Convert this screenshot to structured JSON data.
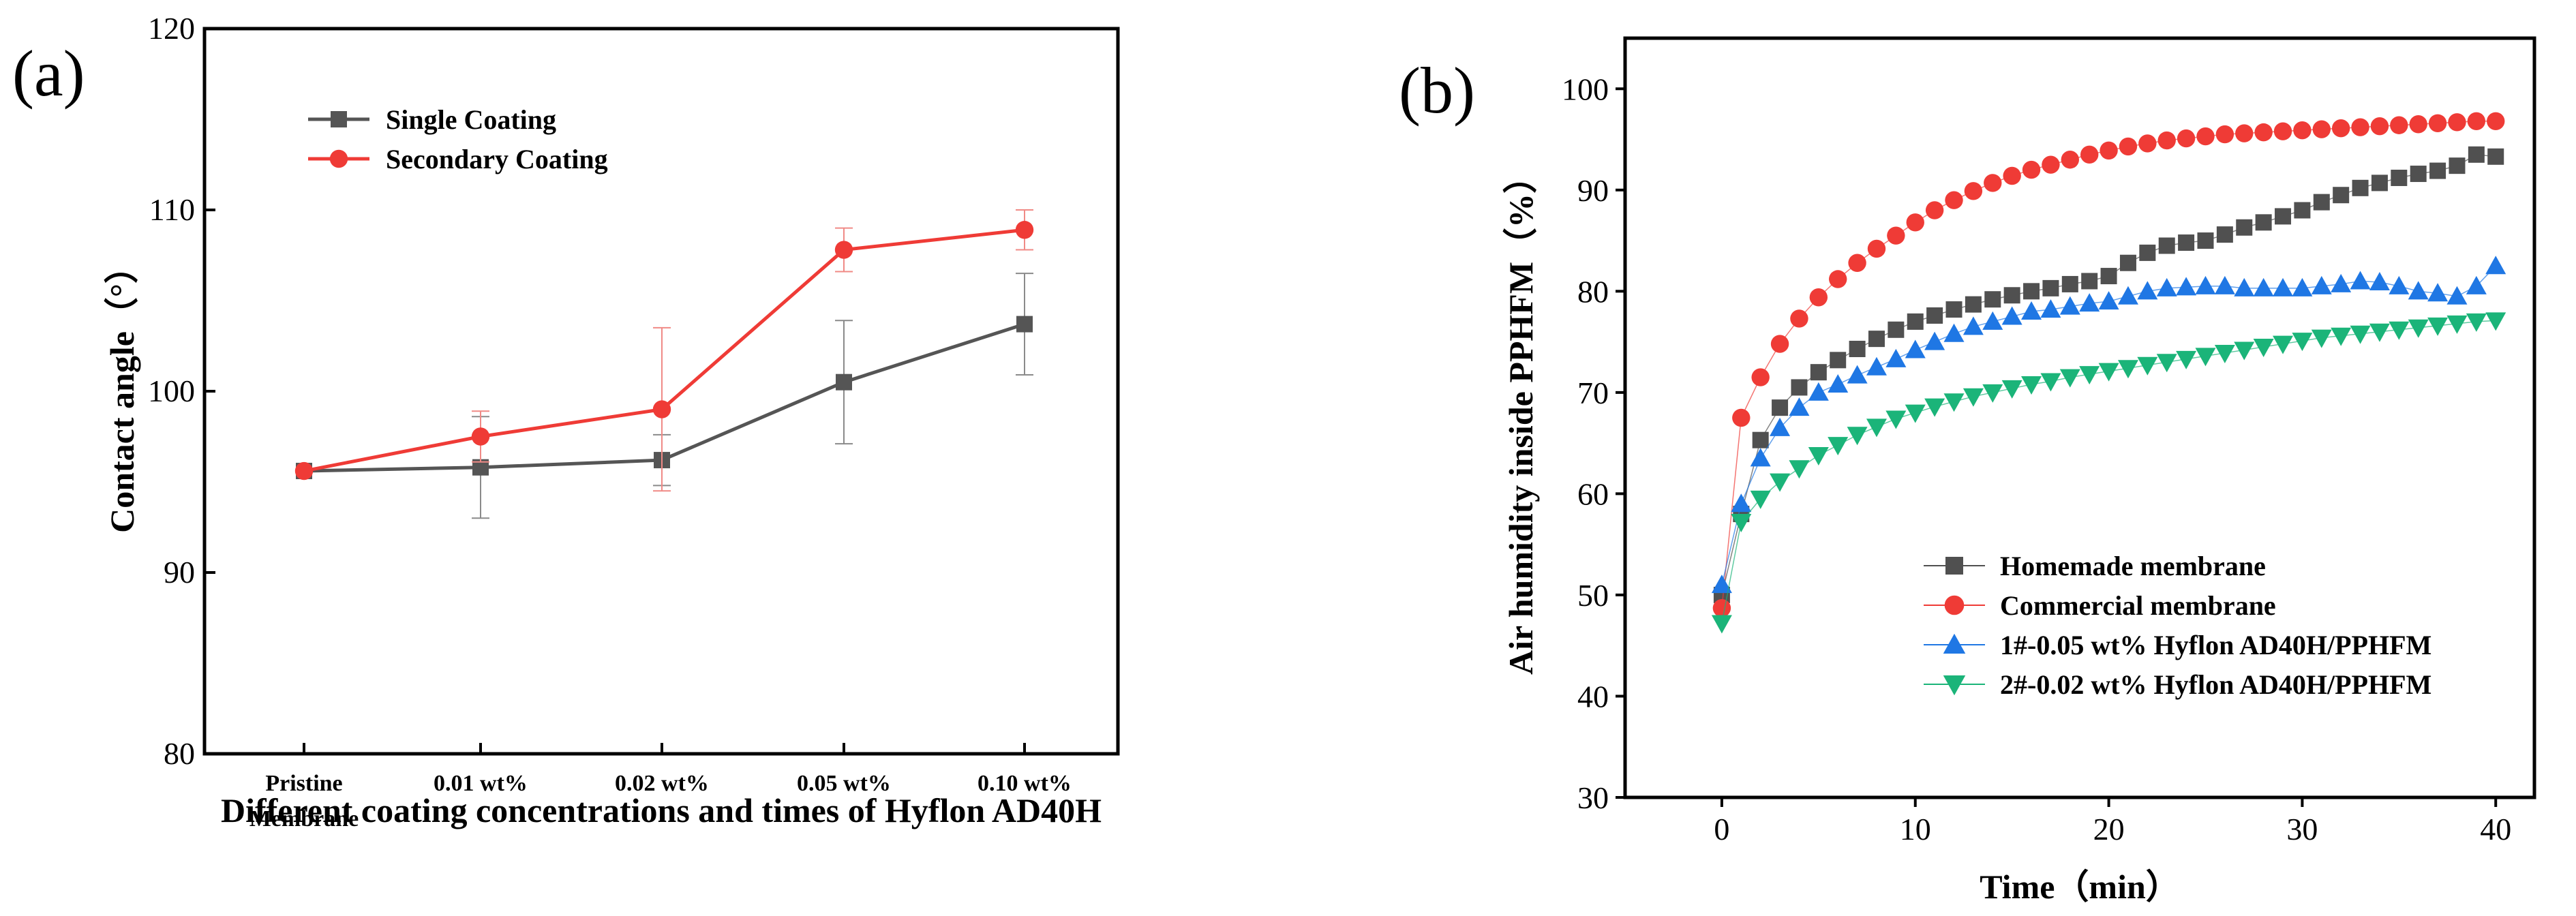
{
  "chart_data": [
    {
      "panel_label": "(a)",
      "type": "line",
      "xlabel": "Different coating concentrations and times of Hyflon AD40H",
      "ylabel": "Contact angle（°）",
      "categories": [
        {
          "line1": "Pristine",
          "line2": "Membrane"
        },
        {
          "line1": "0.01 wt%",
          "line2": ""
        },
        {
          "line1": "0.02 wt%",
          "line2": ""
        },
        {
          "line1": "0.05 wt%",
          "line2": ""
        },
        {
          "line1": "0.10 wt%",
          "line2": ""
        }
      ],
      "ylim": [
        80,
        120
      ],
      "yticks": [
        "80",
        "90",
        "100",
        "110",
        "120"
      ],
      "legend_position": "top-left",
      "series": [
        {
          "name": "Single Coating",
          "color": "#555555",
          "marker": "square",
          "values": [
            95.6,
            95.8,
            96.2,
            100.5,
            103.7
          ],
          "error": [
            0,
            2.8,
            1.4,
            3.4,
            2.8
          ]
        },
        {
          "name": "Secondary Coating",
          "color": "#ef3b36",
          "marker": "circle",
          "values": [
            95.6,
            97.5,
            99.0,
            107.8,
            108.9
          ],
          "error": [
            0,
            1.4,
            4.5,
            1.2,
            1.1
          ]
        }
      ]
    },
    {
      "panel_label": "(b)",
      "type": "scatter",
      "xlabel": "Time（min）",
      "ylabel": "Air humidity inside PPHFM（%）",
      "xlim": [
        -5,
        42
      ],
      "ylim": [
        30,
        105
      ],
      "xticks": [
        "0",
        "10",
        "20",
        "30",
        "40"
      ],
      "yticks": [
        "30",
        "40",
        "50",
        "60",
        "70",
        "80",
        "90",
        "100"
      ],
      "legend_position": "bottom-right",
      "series": [
        {
          "name": "Homemade membrane",
          "color": "#505050",
          "marker": "square",
          "x": [
            0,
            1,
            2,
            3,
            4,
            5,
            6,
            7,
            8,
            9,
            10,
            11,
            12,
            13,
            14,
            15,
            16,
            17,
            18,
            19,
            20,
            21,
            22,
            23,
            24,
            25,
            26,
            27,
            28,
            29,
            30,
            31,
            32,
            33,
            34,
            35,
            36,
            37,
            38,
            39,
            40
          ],
          "y": [
            50,
            58,
            65.3,
            68.5,
            70.5,
            72,
            73.2,
            74.3,
            75.3,
            76.2,
            77,
            77.6,
            78.2,
            78.7,
            79.2,
            79.6,
            80,
            80.3,
            80.7,
            81,
            81.5,
            82.8,
            83.8,
            84.5,
            84.8,
            85,
            85.6,
            86.3,
            86.8,
            87.4,
            88,
            88.8,
            89.5,
            90.2,
            90.7,
            91.2,
            91.6,
            91.9,
            92.4,
            93.5,
            93.3
          ]
        },
        {
          "name": "Commercial membrane",
          "color": "#ef3b36",
          "marker": "circle",
          "x": [
            0,
            1,
            2,
            3,
            4,
            5,
            6,
            7,
            8,
            9,
            10,
            11,
            12,
            13,
            14,
            15,
            16,
            17,
            18,
            19,
            20,
            21,
            22,
            23,
            24,
            25,
            26,
            27,
            28,
            29,
            30,
            31,
            32,
            33,
            34,
            35,
            36,
            37,
            38,
            39,
            40
          ],
          "y": [
            48.7,
            67.5,
            71.5,
            74.8,
            77.3,
            79.4,
            81.2,
            82.8,
            84.2,
            85.5,
            86.8,
            88,
            89,
            89.9,
            90.7,
            91.4,
            92,
            92.5,
            93,
            93.5,
            93.9,
            94.3,
            94.6,
            94.9,
            95.1,
            95.3,
            95.5,
            95.6,
            95.7,
            95.8,
            95.9,
            96,
            96.1,
            96.2,
            96.3,
            96.4,
            96.5,
            96.6,
            96.7,
            96.8,
            96.8
          ]
        },
        {
          "name": "1#-0.05 wt% Hyflon AD40H/PPHFM",
          "color": "#1f77e4",
          "marker": "triangle-up",
          "x": [
            0,
            1,
            2,
            3,
            4,
            5,
            6,
            7,
            8,
            9,
            10,
            11,
            12,
            13,
            14,
            15,
            16,
            17,
            18,
            19,
            20,
            21,
            22,
            23,
            24,
            25,
            26,
            27,
            28,
            29,
            30,
            31,
            32,
            33,
            34,
            35,
            36,
            37,
            38,
            39,
            40
          ],
          "y": [
            51,
            59,
            63.5,
            66.5,
            68.5,
            70,
            70.8,
            71.7,
            72.5,
            73.3,
            74.2,
            75,
            75.8,
            76.5,
            77,
            77.5,
            78,
            78.2,
            78.5,
            78.8,
            79,
            79.5,
            80,
            80.3,
            80.4,
            80.5,
            80.5,
            80.3,
            80.3,
            80.3,
            80.3,
            80.5,
            80.7,
            81,
            80.9,
            80.5,
            80,
            79.8,
            79.5,
            80.5,
            82.5
          ]
        },
        {
          "name": "2#-0.02 wt% Hyflon AD40H/PPHFM",
          "color": "#1bb479",
          "marker": "triangle-down",
          "x": [
            0,
            1,
            2,
            3,
            4,
            5,
            6,
            7,
            8,
            9,
            10,
            11,
            12,
            13,
            14,
            15,
            16,
            17,
            18,
            19,
            20,
            21,
            22,
            23,
            24,
            25,
            26,
            27,
            28,
            29,
            30,
            31,
            32,
            33,
            34,
            35,
            36,
            37,
            38,
            39,
            40
          ],
          "y": [
            47.2,
            57.2,
            59.5,
            61.2,
            62.5,
            63.8,
            64.8,
            65.8,
            66.6,
            67.4,
            68,
            68.6,
            69.1,
            69.6,
            70,
            70.4,
            70.8,
            71.1,
            71.5,
            71.8,
            72.1,
            72.4,
            72.7,
            73.0,
            73.3,
            73.6,
            73.9,
            74.2,
            74.5,
            74.8,
            75.1,
            75.4,
            75.6,
            75.8,
            76.0,
            76.2,
            76.4,
            76.6,
            76.8,
            77.0,
            77.1
          ]
        }
      ]
    }
  ]
}
